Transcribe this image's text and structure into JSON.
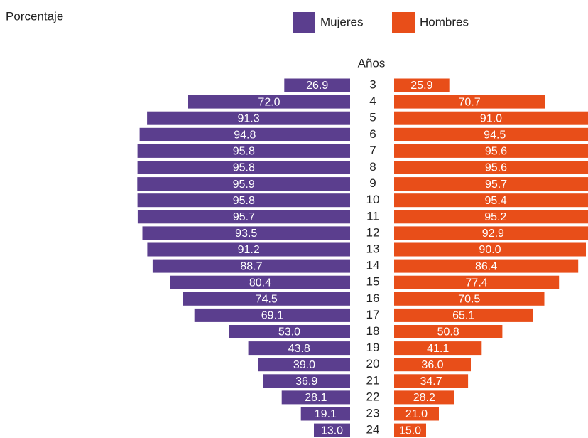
{
  "chart_data": {
    "type": "butterfly",
    "subtitle": "Porcentaje",
    "axis_label": "Años",
    "categories": [
      "3",
      "4",
      "5",
      "6",
      "7",
      "8",
      "9",
      "10",
      "11",
      "12",
      "13",
      "14",
      "15",
      "16",
      "17",
      "18",
      "19",
      "20",
      "21",
      "22",
      "23",
      "24"
    ],
    "series": [
      {
        "name": "Mujeres",
        "color": "#5b3e8e",
        "values": [
          26.9,
          72.0,
          91.3,
          94.8,
          95.8,
          95.8,
          95.9,
          95.8,
          95.7,
          93.5,
          91.2,
          88.7,
          80.4,
          74.5,
          69.1,
          53.0,
          43.8,
          39.0,
          36.9,
          28.1,
          19.1,
          13.0
        ],
        "value_labels": [
          "26.9",
          "72.0",
          "91.3",
          "94.8",
          "95.8",
          "95.8",
          "95.9",
          "95.8",
          "95.7",
          "93.5",
          "91.2",
          "88.7",
          "80.4",
          "74.5",
          "69.1",
          "53.0",
          "43.8",
          "39.0",
          "36.9",
          "28.1",
          "19.1",
          "13.0"
        ]
      },
      {
        "name": "Hombres",
        "color": "#e84e19",
        "values": [
          25.9,
          70.7,
          91.0,
          94.5,
          95.6,
          95.6,
          95.7,
          95.4,
          95.2,
          92.9,
          90.0,
          86.4,
          77.4,
          70.5,
          65.1,
          50.8,
          41.1,
          36.0,
          34.7,
          28.2,
          21.0,
          15.0
        ],
        "value_labels": [
          "25.9",
          "70.7",
          "91.0",
          "94.5",
          "95.6",
          "95.6",
          "95.7",
          "95.4",
          "95.2",
          "92.9",
          "90.0",
          "86.4",
          "77.4",
          "70.5",
          "65.1",
          "50.8",
          "41.1",
          "36.0",
          "34.7",
          "28.2",
          "21.0",
          "15.0"
        ]
      }
    ]
  }
}
